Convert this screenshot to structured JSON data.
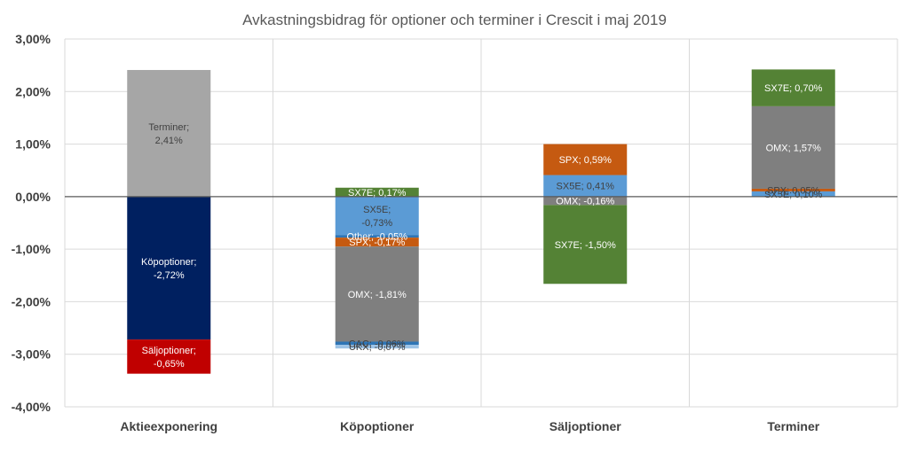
{
  "chart_data": {
    "type": "bar",
    "stacked": true,
    "title": "Avkastningsbidrag för optioner och terminer i Crescit i maj 2019",
    "xlabel": "",
    "ylabel": "",
    "ylim": [
      -4,
      3
    ],
    "y_tick_step": 1,
    "y_tick_labels": [
      "3,00%",
      "2,00%",
      "1,00%",
      "0,00%",
      "-1,00%",
      "-2,00%",
      "-3,00%",
      "-4,00%"
    ],
    "grid": true,
    "categories": [
      "Aktieexponering",
      "Köpoptioner",
      "Säljoptioner",
      "Terminer"
    ],
    "bars": [
      {
        "category": "Aktieexponering",
        "segments": [
          {
            "name": "Terminer",
            "value": 2.41,
            "label_line1": "Terminer;",
            "label_line2": "2,41%",
            "color": "#a6a6a6",
            "text_color": "#404040"
          },
          {
            "name": "Köpoptioner",
            "value": -2.72,
            "label_line1": "Köpoptioner;",
            "label_line2": "-2,72%",
            "color": "#002060",
            "text_color": "#ffffff"
          },
          {
            "name": "Säljoptioner",
            "value": -0.65,
            "label_line1": "Säljoptioner;",
            "label_line2": "-0,65%",
            "color": "#c00000",
            "text_color": "#ffffff"
          }
        ]
      },
      {
        "category": "Köpoptioner",
        "segments": [
          {
            "name": "SX7E",
            "value": 0.17,
            "label_line1": "SX7E; 0,17%",
            "color": "#548235",
            "text_color": "#ffffff"
          },
          {
            "name": "SX5E",
            "value": -0.73,
            "label_line1": "SX5E;",
            "label_line2": "-0,73%",
            "color": "#5b9bd5",
            "text_color": "#404040"
          },
          {
            "name": "Other",
            "value": -0.05,
            "label_line1": "Other; -0,05%",
            "color": "#2e75b6",
            "text_color": "#ffffff"
          },
          {
            "name": "SPX",
            "value": -0.17,
            "label_line1": "SPX; -0,17%",
            "color": "#c55a11",
            "text_color": "#ffffff"
          },
          {
            "name": "OMX",
            "value": -1.81,
            "label_line1": "OMX; -1,81%",
            "color": "#7f7f7f",
            "text_color": "#ffffff"
          },
          {
            "name": "CAC",
            "value": -0.06,
            "label_line1": "CAC; -0,06%",
            "color": "#2e75b6",
            "text_color": "#404040"
          },
          {
            "name": "UKX",
            "value": -0.07,
            "label_line1": "UKX; -0,07%",
            "color": "#9dc3e6",
            "text_color": "#404040"
          }
        ]
      },
      {
        "category": "Säljoptioner",
        "segments": [
          {
            "name": "SX5E",
            "value": 0.41,
            "label_line1": "SX5E; 0,41%",
            "color": "#5b9bd5",
            "text_color": "#404040"
          },
          {
            "name": "SPX",
            "value": 0.59,
            "label_line1": "SPX; 0,59%",
            "color": "#c55a11",
            "text_color": "#ffffff"
          },
          {
            "name": "OMX",
            "value": -0.16,
            "label_line1": "OMX; -0,16%",
            "color": "#7f7f7f",
            "text_color": "#ffffff"
          },
          {
            "name": "SX7E",
            "value": -1.5,
            "label_line1": "SX7E; -1,50%",
            "color": "#548235",
            "text_color": "#ffffff"
          }
        ]
      },
      {
        "category": "Terminer",
        "segments": [
          {
            "name": "SX5E",
            "value": 0.1,
            "label_line1": "SX5E; 0,10%",
            "color": "#5b9bd5",
            "text_color": "#404040"
          },
          {
            "name": "SPX",
            "value": 0.05,
            "label_line1": "SPX; 0,05%",
            "color": "#c55a11",
            "text_color": "#404040"
          },
          {
            "name": "OMX",
            "value": 1.57,
            "label_line1": "OMX; 1,57%",
            "color": "#7f7f7f",
            "text_color": "#ffffff"
          },
          {
            "name": "SX7E",
            "value": 0.7,
            "label_line1": "SX7E; 0,70%",
            "color": "#548235",
            "text_color": "#ffffff"
          }
        ]
      }
    ]
  }
}
